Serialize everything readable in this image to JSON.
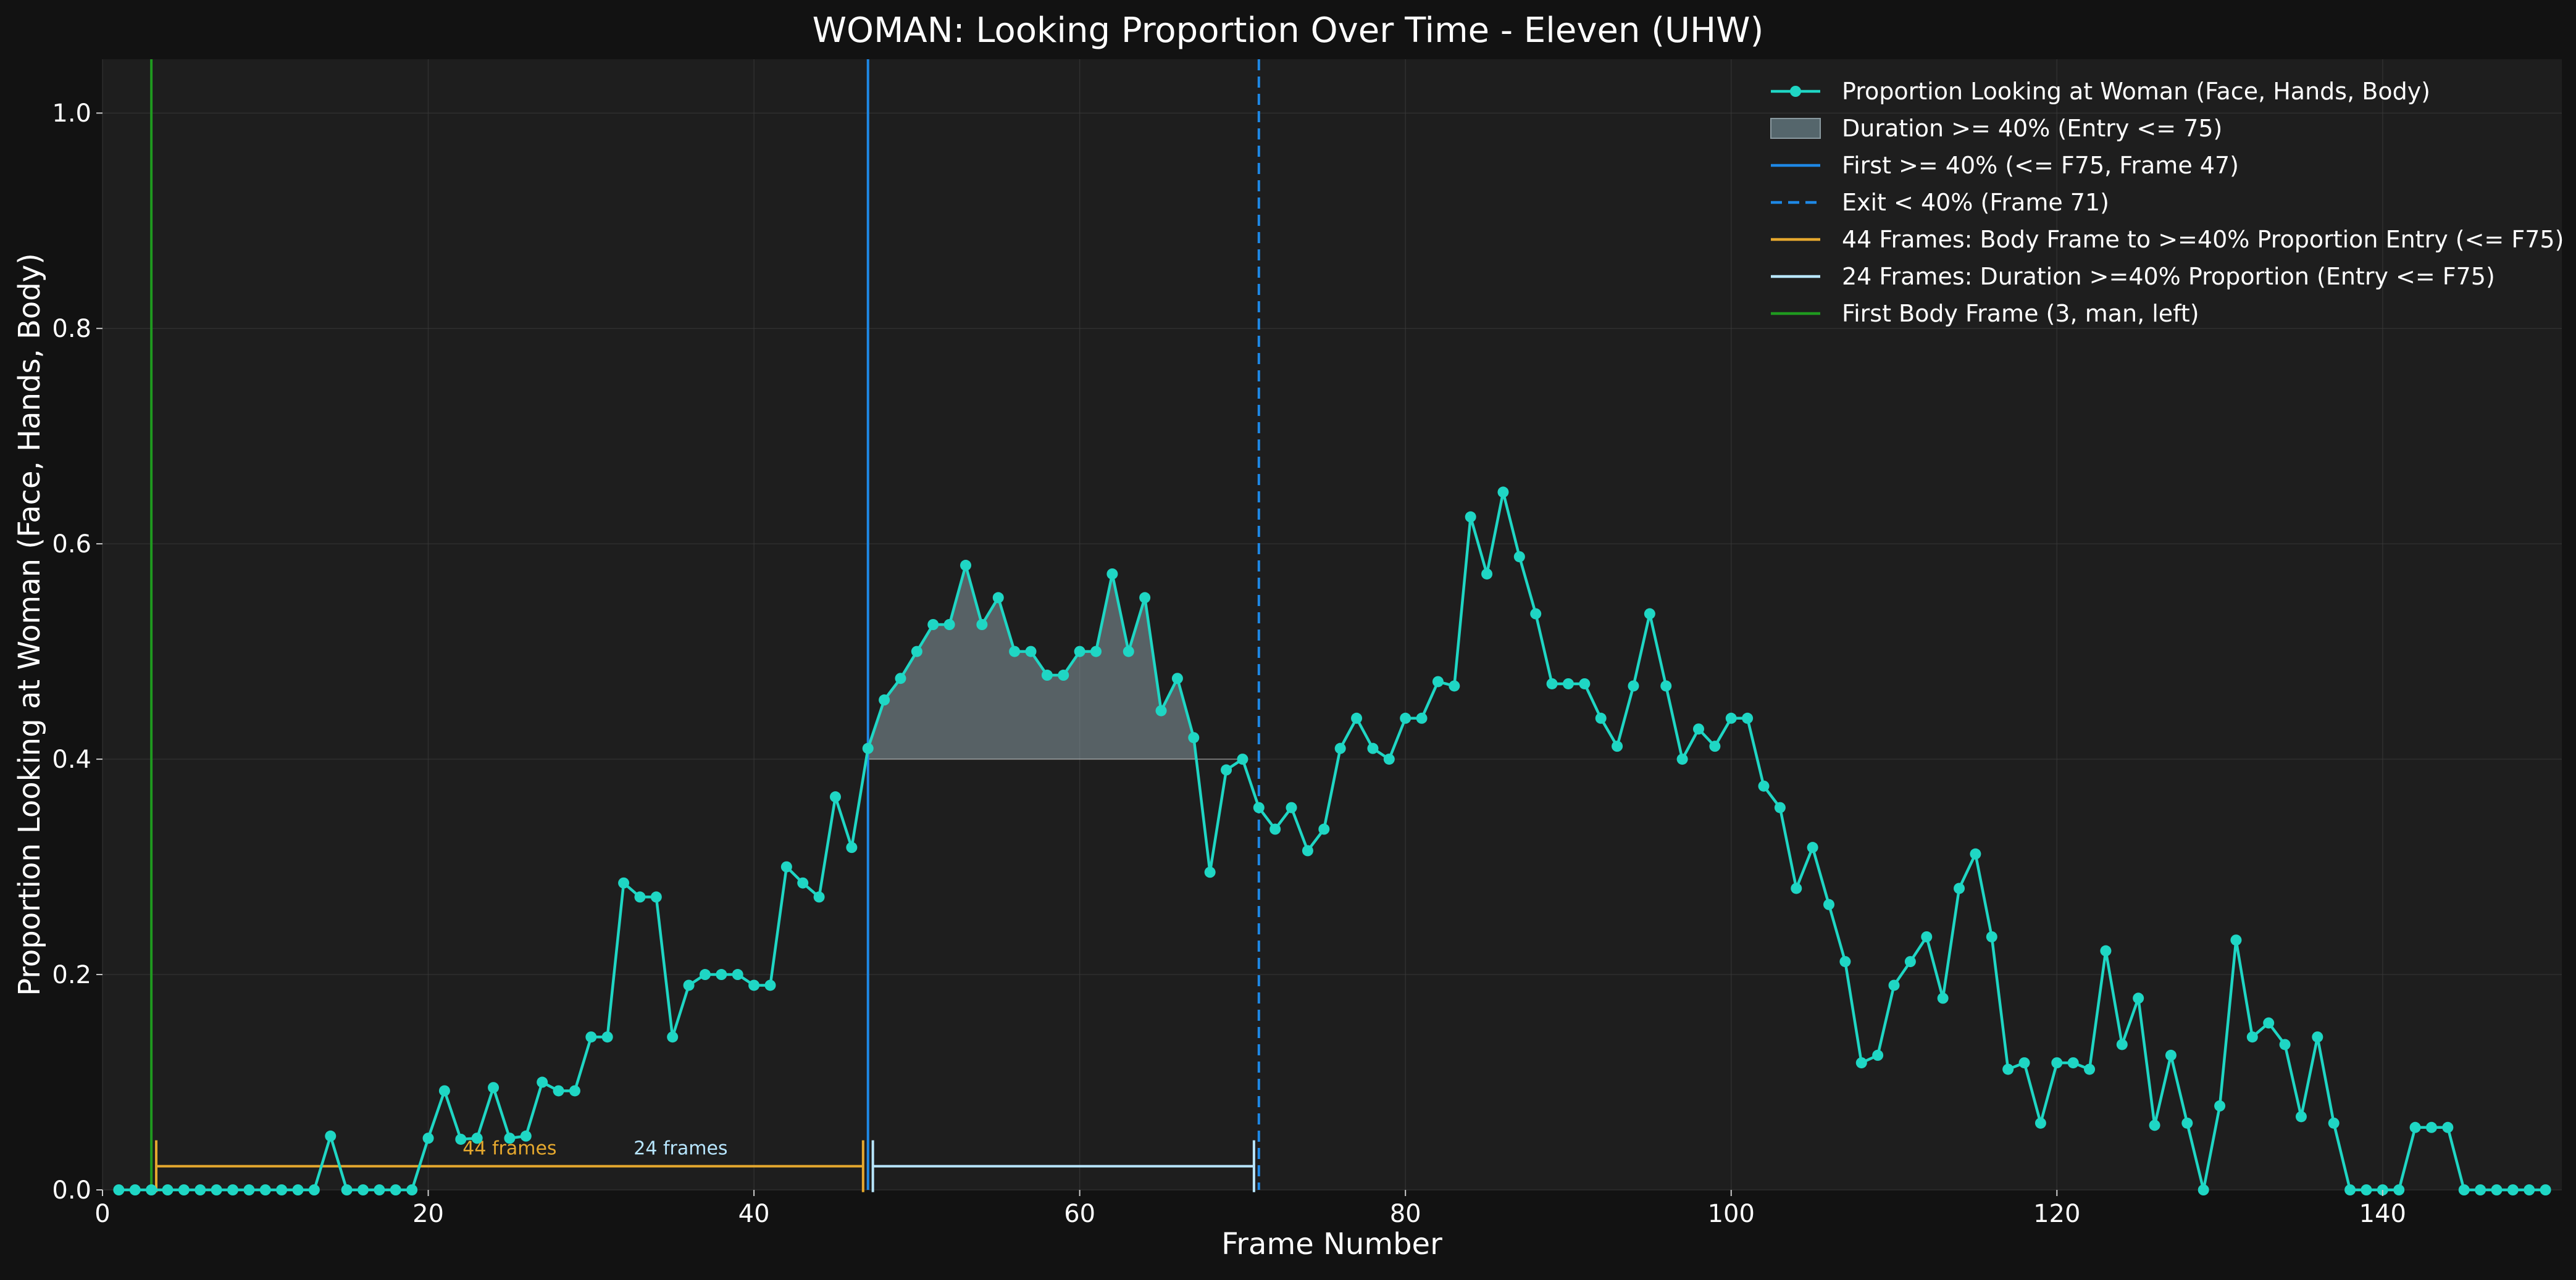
{
  "chart_data": {
    "type": "line",
    "title": "WOMAN: Looking Proportion Over Time - Eleven (UHW)",
    "xlabel": "Frame Number",
    "ylabel": "Proportion Looking at Woman (Face, Hands, Body)",
    "xlim": [
      0,
      151
    ],
    "ylim": [
      0,
      1.05
    ],
    "xticks": [
      0,
      20,
      40,
      60,
      80,
      100,
      120,
      140
    ],
    "yticks": [
      0.0,
      0.2,
      0.4,
      0.6,
      0.8,
      1.0
    ],
    "x_tick_labels": [
      "0",
      "20",
      "40",
      "60",
      "80",
      "100",
      "120",
      "140"
    ],
    "y_tick_labels": [
      "0.0",
      "0.2",
      "0.4",
      "0.6",
      "0.8",
      "1.0"
    ],
    "grid": true,
    "legend_position": "top-right",
    "series": [
      {
        "name": "Proportion Looking at Woman (Face, Hands, Body)",
        "color": "#1fd6c4",
        "x": [
          1,
          2,
          3,
          4,
          5,
          6,
          7,
          8,
          9,
          10,
          11,
          12,
          13,
          14,
          15,
          16,
          17,
          18,
          19,
          20,
          21,
          22,
          23,
          24,
          25,
          26,
          27,
          28,
          29,
          30,
          31,
          32,
          33,
          34,
          35,
          36,
          37,
          38,
          39,
          40,
          41,
          42,
          43,
          44,
          45,
          46,
          47,
          48,
          49,
          50,
          51,
          52,
          53,
          54,
          55,
          56,
          57,
          58,
          59,
          60,
          61,
          62,
          63,
          64,
          65,
          66,
          67,
          68,
          69,
          70,
          71,
          72,
          73,
          74,
          75,
          76,
          77,
          78,
          79,
          80,
          81,
          82,
          83,
          84,
          85,
          86,
          87,
          88,
          89,
          90,
          91,
          92,
          93,
          94,
          95,
          96,
          97,
          98,
          99,
          100,
          101,
          102,
          103,
          104,
          105,
          106,
          107,
          108,
          109,
          110,
          111,
          112,
          113,
          114,
          115,
          116,
          117,
          118,
          119,
          120,
          121,
          122,
          123,
          124,
          125,
          126,
          127,
          128,
          129,
          130,
          131,
          132,
          133,
          134,
          135,
          136,
          137,
          138,
          139,
          140,
          141,
          142,
          143,
          144,
          145,
          146,
          147,
          148,
          149,
          150
        ],
        "values": [
          0,
          0,
          0,
          0,
          0,
          0,
          0,
          0,
          0,
          0,
          0,
          0,
          0,
          0.05,
          0,
          0,
          0,
          0,
          0,
          0.048,
          0.092,
          0.047,
          0.048,
          0.095,
          0.048,
          0.05,
          0.1,
          0.092,
          0.092,
          0.142,
          0.142,
          0.285,
          0.272,
          0.272,
          0.142,
          0.19,
          0.2,
          0.2,
          0.2,
          0.19,
          0.19,
          0.3,
          0.285,
          0.272,
          0.365,
          0.318,
          0.41,
          0.455,
          0.475,
          0.5,
          0.525,
          0.525,
          0.58,
          0.525,
          0.55,
          0.5,
          0.5,
          0.478,
          0.478,
          0.5,
          0.5,
          0.572,
          0.5,
          0.55,
          0.445,
          0.475,
          0.42,
          0.295,
          0.39,
          0.4,
          0.355,
          0.335,
          0.355,
          0.315,
          0.335,
          0.41,
          0.438,
          0.41,
          0.4,
          0.438,
          0.438,
          0.472,
          0.468,
          0.625,
          0.572,
          0.648,
          0.588,
          0.535,
          0.47,
          0.47,
          0.47,
          0.438,
          0.412,
          0.468,
          0.535,
          0.468,
          0.4,
          0.428,
          0.412,
          0.438,
          0.438,
          0.375,
          0.355,
          0.28,
          0.318,
          0.265,
          0.212,
          0.118,
          0.125,
          0.19,
          0.212,
          0.235,
          0.178,
          0.28,
          0.312,
          0.235,
          0.112,
          0.118,
          0.062,
          0.118,
          0.118,
          0.112,
          0.222,
          0.135,
          0.178,
          0.06,
          0.125,
          0.062,
          0,
          0.078,
          0.232,
          0.142,
          0.155,
          0.135,
          0.068,
          0.142,
          0.062,
          0,
          0,
          0,
          0,
          0.058,
          0.058,
          0.058,
          0,
          0,
          0,
          0,
          0,
          0
        ]
      }
    ],
    "threshold": 0.4,
    "shaded_region": {
      "from_frame": 47,
      "to_frame": 71,
      "color": "#8fa4ac"
    },
    "vlines": [
      {
        "key": "first_body",
        "x": 3,
        "color": "#1f9a1f",
        "style": "solid"
      },
      {
        "key": "first_40",
        "x": 47,
        "color": "#1e88e5",
        "style": "solid"
      },
      {
        "key": "exit_40",
        "x": 71,
        "color": "#1e88e5",
        "style": "dashed"
      }
    ],
    "brackets": [
      {
        "from": 3.3,
        "to": 46.7,
        "y": 0.022,
        "color": "#e5a82e",
        "label": "44 frames",
        "label_x": 25,
        "label_y": 0.033
      },
      {
        "from": 47.3,
        "to": 70.7,
        "y": 0.022,
        "color": "#b8e6ff",
        "label": "24 frames",
        "label_x": 35.5,
        "label_y": 0.033
      }
    ],
    "legend": [
      {
        "label": "Proportion Looking at Woman (Face, Hands, Body)",
        "kind": "line-marker",
        "color": "#1fd6c4"
      },
      {
        "label": "Duration >= 40% (Entry <= 75)",
        "kind": "patch",
        "color": "#55666c"
      },
      {
        "label": "First >= 40% (<= F75, Frame 47)",
        "kind": "line",
        "color": "#1e88e5"
      },
      {
        "label": "Exit < 40% (Frame 71)",
        "kind": "dashed",
        "color": "#1e88e5"
      },
      {
        "label": "44 Frames: Body Frame to >=40% Proportion Entry (<= F75)",
        "kind": "line",
        "color": "#e5a82e"
      },
      {
        "label": "24 Frames: Duration >=40% Proportion (Entry <= F75)",
        "kind": "line",
        "color": "#b8e6ff"
      },
      {
        "label": "First Body Frame (3, man, left)",
        "kind": "line",
        "color": "#1f9a1f"
      }
    ]
  }
}
